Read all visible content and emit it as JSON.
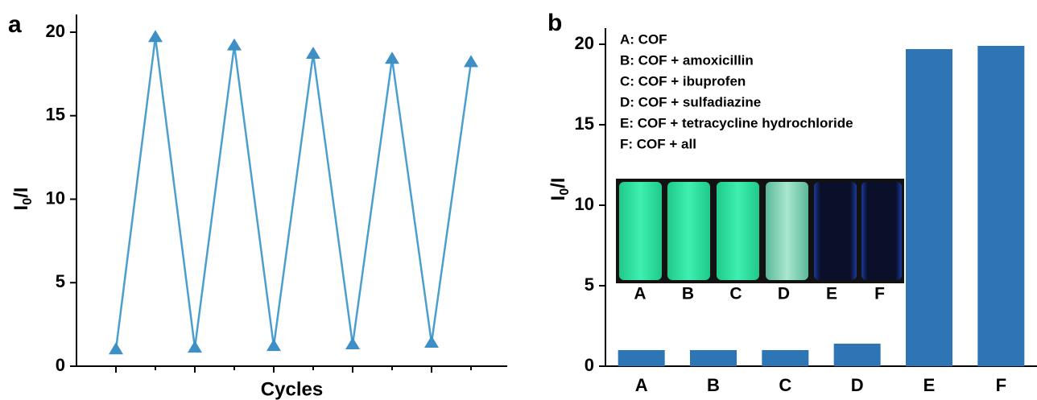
{
  "chart_data": [
    {
      "type": "line",
      "panel": "a",
      "xlabel": "Cycles",
      "ylabel": [
        "I",
        "0",
        "/I"
      ],
      "x": [
        1,
        2,
        3,
        4,
        5,
        6,
        7,
        8,
        9,
        10
      ],
      "values": [
        1.0,
        19.7,
        1.1,
        19.2,
        1.2,
        18.7,
        1.3,
        18.4,
        1.4,
        18.2
      ],
      "color": "#4a9fd0",
      "marker_color": "#3d8fc6",
      "xlim": [
        0,
        11
      ],
      "ylim": [
        0,
        20
      ],
      "yticks": [
        0,
        5,
        10,
        15,
        20
      ]
    },
    {
      "type": "bar",
      "panel": "b",
      "ylabel": [
        "I",
        "0",
        "/I"
      ],
      "categories": [
        "A",
        "B",
        "C",
        "D",
        "E",
        "F"
      ],
      "values": [
        1.0,
        1.0,
        1.0,
        1.4,
        19.7,
        19.9
      ],
      "color": "#2e75b6",
      "ylim": [
        0,
        21
      ],
      "yticks": [
        0,
        5,
        10,
        15,
        20
      ],
      "annotations": [
        "A: COF",
        "B: COF + amoxicillin",
        "C: COF + ibuprofen",
        "D: COF + sulfadiazine",
        "E: COF + tetracycline hydrochloride",
        "F: COF + all"
      ],
      "inset_labels": [
        "A",
        "B",
        "C",
        "D",
        "E",
        "F"
      ]
    }
  ]
}
